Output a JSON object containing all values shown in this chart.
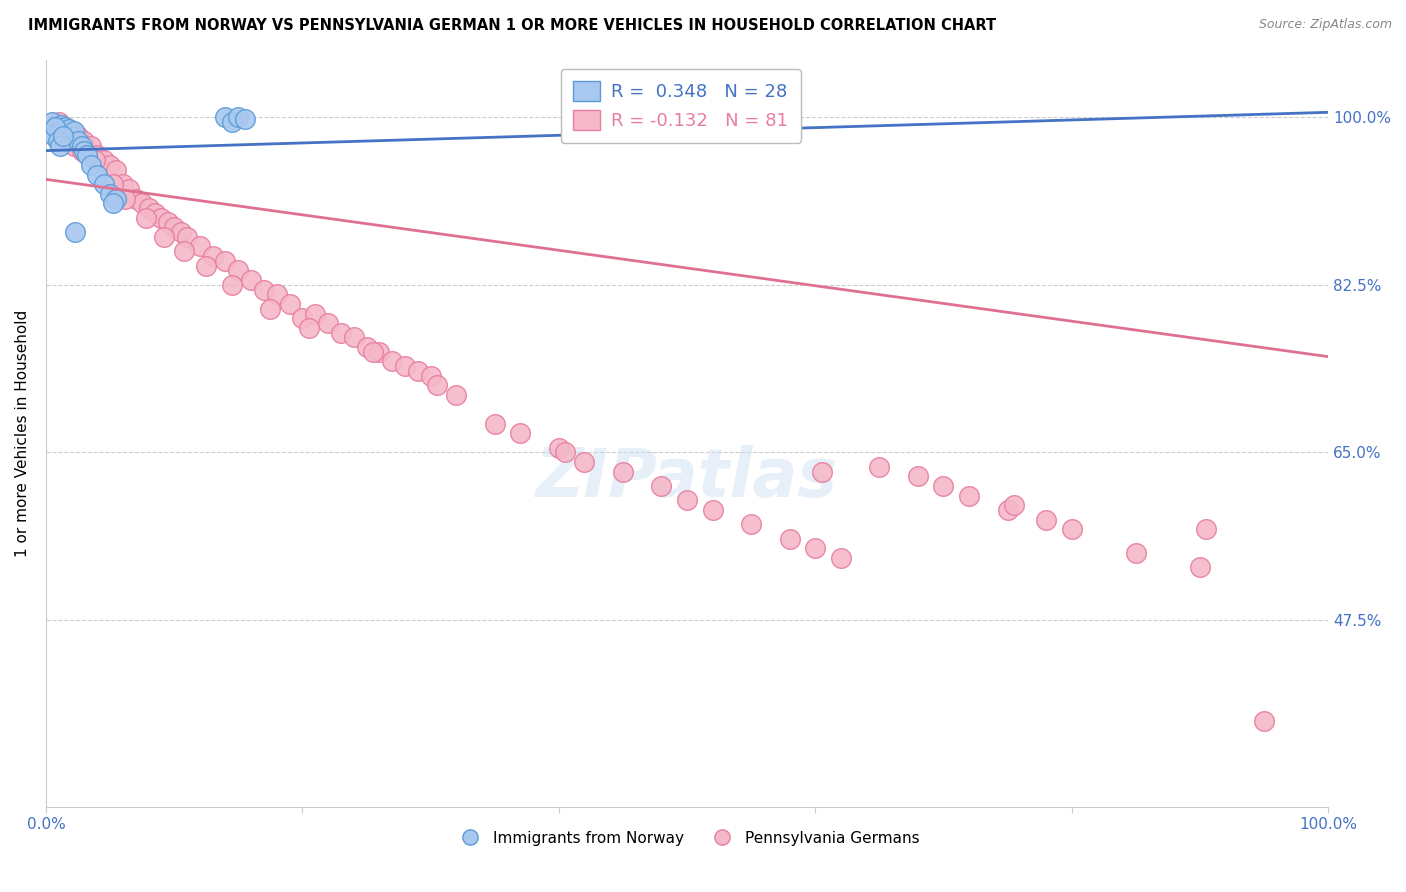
{
  "title": "IMMIGRANTS FROM NORWAY VS PENNSYLVANIA GERMAN 1 OR MORE VEHICLES IN HOUSEHOLD CORRELATION CHART",
  "source": "Source: ZipAtlas.com",
  "ylabel": "1 or more Vehicles in Household",
  "norway_color": "#A8C8F0",
  "norway_edge": "#5B9BD5",
  "penn_color": "#F4B8C8",
  "penn_edge": "#E87DA0",
  "trendline_norway": "#4472C4",
  "trendline_penn": "#E07090",
  "xlim": [
    0.0,
    100.0
  ],
  "ylim": [
    28.0,
    106.0
  ],
  "ytick_vals": [
    47.5,
    65.0,
    82.5,
    100.0
  ],
  "ytick_labels": [
    "47.5%",
    "65.0%",
    "82.5%",
    "100.0%"
  ],
  "xtick_vals": [
    0,
    20,
    40,
    60,
    80,
    100
  ],
  "xtick_labels": [
    "0.0%",
    "",
    "",
    "",
    "",
    "100.0%"
  ],
  "norway_x": [
    0.5,
    0.8,
    1.0,
    1.2,
    1.5,
    1.8,
    2.0,
    2.2,
    2.5,
    2.8,
    3.0,
    3.2,
    3.5,
    4.0,
    4.5,
    5.0,
    5.5,
    14.0,
    14.5,
    15.0,
    15.5,
    0.6,
    0.7,
    0.9,
    1.1,
    1.3,
    2.3,
    5.2
  ],
  "norway_y": [
    99.5,
    99.0,
    98.5,
    99.2,
    99.0,
    98.8,
    98.0,
    98.5,
    97.5,
    97.0,
    96.5,
    96.0,
    95.0,
    94.0,
    93.0,
    92.0,
    91.5,
    100.0,
    99.5,
    100.0,
    99.8,
    98.0,
    99.0,
    97.5,
    97.0,
    98.0,
    88.0,
    91.0
  ],
  "penn_x": [
    1.0,
    1.5,
    2.0,
    2.5,
    3.0,
    3.5,
    4.0,
    4.5,
    5.0,
    5.5,
    6.0,
    6.5,
    7.0,
    7.5,
    8.0,
    8.5,
    9.0,
    9.5,
    10.0,
    10.5,
    11.0,
    12.0,
    13.0,
    14.0,
    15.0,
    16.0,
    17.0,
    18.0,
    19.0,
    20.0,
    21.0,
    22.0,
    23.0,
    24.0,
    25.0,
    26.0,
    27.0,
    28.0,
    29.0,
    30.0,
    32.0,
    35.0,
    37.0,
    40.0,
    42.0,
    45.0,
    48.0,
    50.0,
    52.0,
    55.0,
    58.0,
    60.0,
    62.0,
    65.0,
    68.0,
    70.0,
    72.0,
    75.0,
    78.0,
    80.0,
    85.0,
    90.0,
    2.2,
    2.8,
    3.8,
    5.2,
    6.2,
    7.8,
    9.2,
    10.8,
    12.5,
    14.5,
    17.5,
    20.5,
    25.5,
    30.5,
    40.5,
    60.5,
    75.5,
    90.5,
    95.0
  ],
  "penn_y": [
    99.5,
    99.0,
    98.5,
    98.0,
    97.5,
    97.0,
    96.0,
    95.5,
    95.0,
    94.5,
    93.0,
    92.5,
    91.5,
    91.0,
    90.5,
    90.0,
    89.5,
    89.0,
    88.5,
    88.0,
    87.5,
    86.5,
    85.5,
    85.0,
    84.0,
    83.0,
    82.0,
    81.5,
    80.5,
    79.0,
    79.5,
    78.5,
    77.5,
    77.0,
    76.0,
    75.5,
    74.5,
    74.0,
    73.5,
    73.0,
    71.0,
    68.0,
    67.0,
    65.5,
    64.0,
    63.0,
    61.5,
    60.0,
    59.0,
    57.5,
    56.0,
    55.0,
    54.0,
    63.5,
    62.5,
    61.5,
    60.5,
    59.0,
    58.0,
    57.0,
    54.5,
    53.0,
    97.0,
    96.5,
    95.5,
    93.0,
    91.5,
    89.5,
    87.5,
    86.0,
    84.5,
    82.5,
    80.0,
    78.0,
    75.5,
    72.0,
    65.0,
    63.0,
    59.5,
    57.0,
    37.0
  ],
  "penn_trendline_x0": 0,
  "penn_trendline_y0": 93.5,
  "penn_trendline_x1": 100,
  "penn_trendline_y1": 75.0,
  "norway_trendline_x0": 0,
  "norway_trendline_y0": 96.5,
  "norway_trendline_x1": 100,
  "norway_trendline_y1": 100.5
}
